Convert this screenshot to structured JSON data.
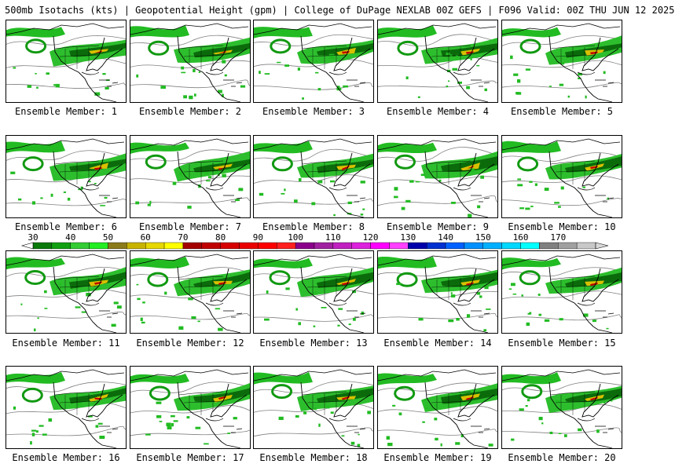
{
  "header": {
    "title": "500mb Isotachs (kts) | Geopotential Height (gpm) | College of DuPage NEXLAB   00Z GEFS | F096 Valid: 00Z THU JUN 12 2025"
  },
  "panels": [
    {
      "caption": "Ensemble Member: 1"
    },
    {
      "caption": "Ensemble Member: 2"
    },
    {
      "caption": "Ensemble Member: 3"
    },
    {
      "caption": "Ensemble Member: 4"
    },
    {
      "caption": "Ensemble Member: 5"
    },
    {
      "caption": "Ensemble Member: 6"
    },
    {
      "caption": "Ensemble Member: 7"
    },
    {
      "caption": "Ensemble Member: 8"
    },
    {
      "caption": "Ensemble Member: 9"
    },
    {
      "caption": "Ensemble Member: 10"
    },
    {
      "caption": "Ensemble Member: 11"
    },
    {
      "caption": "Ensemble Member: 12"
    },
    {
      "caption": "Ensemble Member: 13"
    },
    {
      "caption": "Ensemble Member: 14"
    },
    {
      "caption": "Ensemble Member: 15"
    },
    {
      "caption": "Ensemble Member: 16"
    },
    {
      "caption": "Ensemble Member: 17"
    },
    {
      "caption": "Ensemble Member: 18"
    },
    {
      "caption": "Ensemble Member: 19"
    },
    {
      "caption": "Ensemble Member: 20"
    }
  ],
  "colorbar": {
    "labels": [
      "30",
      "40",
      "50",
      "60",
      "70",
      "80",
      "90",
      "100",
      "110",
      "120",
      "130",
      "140",
      "150",
      "160",
      "170"
    ],
    "colors": [
      "#0a7a0a",
      "#11a011",
      "#33cc33",
      "#22ee22",
      "#8b7b1a",
      "#c8b400",
      "#e6d800",
      "#ffff00",
      "#a50000",
      "#c00000",
      "#d60000",
      "#ea0000",
      "#ff0000",
      "#ff2020",
      "#8b008b",
      "#a020a0",
      "#c020c0",
      "#dd22dd",
      "#ff00ff",
      "#ff40ff",
      "#0000aa",
      "#0030d0",
      "#0060ff",
      "#0090ff",
      "#00b0ff",
      "#00d8ff",
      "#00ffff",
      "#808080",
      "#a0a0a0",
      "#c8c8c8"
    ],
    "map_colors": {
      "shade_light": "#22bb22",
      "shade_dark": "#0b6b0b",
      "shade_mid": "#119911",
      "shade_yellow": "#d8c000",
      "shade_red": "#c00000",
      "outline": "#000000",
      "height_contour": "#808080"
    }
  }
}
